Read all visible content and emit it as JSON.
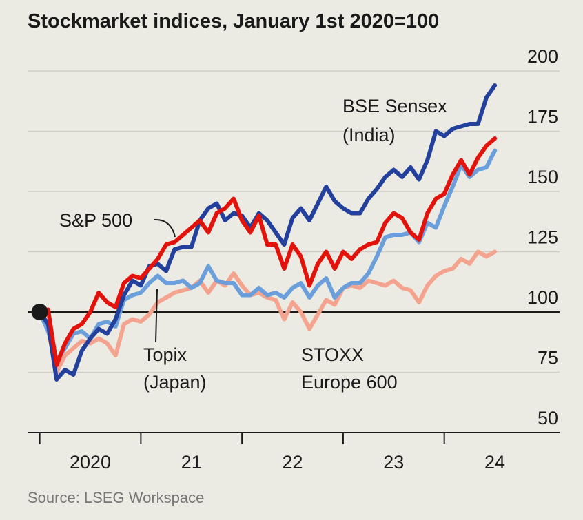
{
  "chart_data": {
    "type": "line",
    "title": "Stockmarket indices, January 1st 2020=100",
    "source": "Source: LSEG Workspace",
    "x": [
      2020,
      2020.083,
      2020.167,
      2020.25,
      2020.333,
      2020.417,
      2020.5,
      2020.583,
      2020.667,
      2020.75,
      2020.833,
      2020.917,
      2021,
      2021.083,
      2021.167,
      2021.25,
      2021.333,
      2021.417,
      2021.5,
      2021.583,
      2021.667,
      2021.75,
      2021.833,
      2021.917,
      2022,
      2022.083,
      2022.167,
      2022.25,
      2022.333,
      2022.417,
      2022.5,
      2022.583,
      2022.667,
      2022.75,
      2022.833,
      2022.917,
      2023,
      2023.083,
      2023.167,
      2023.25,
      2023.333,
      2023.417,
      2023.5,
      2023.583,
      2023.667,
      2023.75,
      2023.833,
      2023.917,
      2024,
      2024.083,
      2024.167,
      2024.25,
      2024.333,
      2024.417,
      2024.5
    ],
    "series": [
      {
        "name": "STOXX Europe 600",
        "color": "#f4a48e",
        "values": [
          100,
          93,
          75,
          82,
          85,
          88,
          87,
          89,
          87,
          82,
          95,
          97,
          96,
          99,
          104,
          106,
          108,
          109,
          110,
          113,
          108,
          113,
          111,
          116,
          111,
          107,
          108,
          106,
          105,
          97,
          104,
          100,
          93,
          99,
          105,
          103,
          110,
          111,
          110,
          113,
          112,
          111,
          113,
          110,
          109,
          104,
          111,
          115,
          117,
          118,
          122,
          120,
          125,
          123,
          125
        ]
      },
      {
        "name": "Topix (Japan)",
        "color": "#6b9fdb",
        "values": [
          100,
          92,
          80,
          85,
          91,
          92,
          89,
          95,
          96,
          94,
          105,
          107,
          108,
          112,
          115,
          112,
          112,
          113,
          110,
          112,
          119,
          113,
          112,
          112,
          107,
          107,
          110,
          107,
          108,
          106,
          110,
          112,
          106,
          111,
          114,
          106,
          110,
          112,
          112,
          116,
          123,
          131,
          132,
          132,
          133,
          129,
          137,
          135,
          144,
          152,
          161,
          156,
          159,
          160,
          167
        ]
      },
      {
        "name": "BSE Sensex (India)",
        "color": "#23409c",
        "values": [
          100,
          95,
          72,
          76,
          74,
          84,
          89,
          93,
          91,
          97,
          107,
          113,
          111,
          119,
          120,
          117,
          126,
          127,
          127,
          138,
          143,
          145,
          138,
          141,
          140,
          135,
          141,
          138,
          133,
          128,
          139,
          143,
          138,
          145,
          152,
          146,
          143,
          141,
          141,
          147,
          151,
          156,
          159,
          156,
          160,
          155,
          163,
          175,
          173,
          176,
          177,
          178,
          178,
          189,
          194
        ]
      },
      {
        "name": "S&P 500",
        "color": "#e3120b",
        "values": [
          100,
          101,
          78,
          87,
          93,
          95,
          100,
          108,
          104,
          102,
          112,
          115,
          114,
          118,
          122,
          128,
          129,
          132,
          135,
          138,
          133,
          141,
          143,
          147,
          138,
          133,
          140,
          128,
          128,
          118,
          128,
          123,
          111,
          120,
          125,
          118,
          125,
          122,
          126,
          128,
          129,
          137,
          141,
          139,
          133,
          130,
          141,
          147,
          149,
          157,
          163,
          157,
          164,
          169,
          172
        ]
      }
    ],
    "annotations": {
      "sensex": [
        "BSE Sensex",
        "(India)"
      ],
      "sp": [
        "S&P 500"
      ],
      "topix": [
        "Topix",
        "(Japan)"
      ],
      "stoxx": [
        "STOXX",
        "Europe 600"
      ]
    },
    "xlim": [
      2019.88,
      2025.14
    ],
    "xticks": [
      2020,
      {
        "value": 2021,
        "label": "21"
      },
      {
        "value": 2022,
        "label": "22"
      },
      {
        "value": 2023,
        "label": "23"
      },
      {
        "value": 2024,
        "label": "24"
      }
    ],
    "ylim": [
      50,
      200
    ],
    "yticks": [
      50,
      75,
      100,
      125,
      150,
      175,
      200
    ],
    "baseline": 100,
    "grid": true
  }
}
